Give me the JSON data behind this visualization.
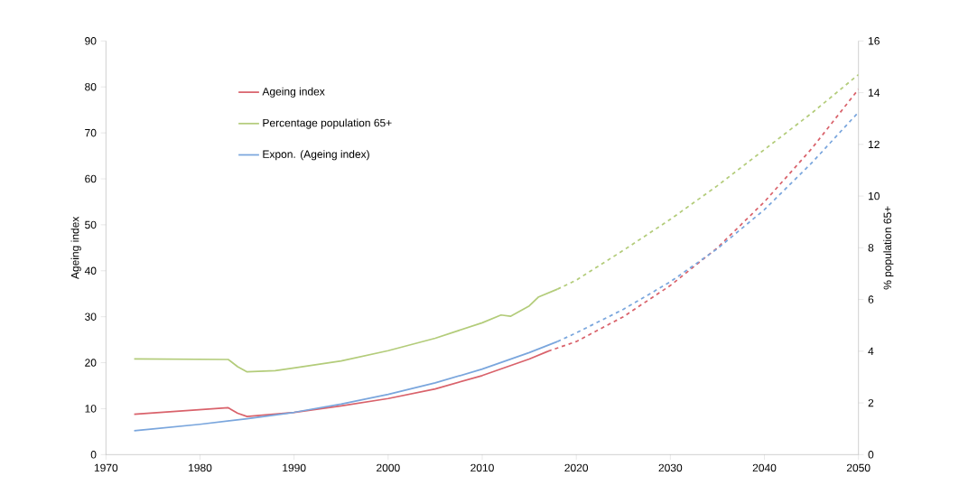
{
  "chart_data": {
    "type": "line",
    "ylabel": "Ageing index",
    "y2label": "% population 65+",
    "xlim": [
      1970,
      2050
    ],
    "xticks": [
      1970,
      1980,
      1990,
      2000,
      2010,
      2020,
      2030,
      2040,
      2050
    ],
    "ylim": [
      0,
      90
    ],
    "yticks": [
      0,
      10,
      20,
      30,
      40,
      50,
      60,
      70,
      80,
      90
    ],
    "y2lim": [
      0,
      16
    ],
    "y2ticks": [
      0,
      2,
      4,
      6,
      8,
      10,
      12,
      14,
      16
    ],
    "legend": "top left",
    "marker": "none",
    "series": [
      {
        "name": "Ageing index",
        "color": "#d9626b",
        "line_style": "solid",
        "x": [
          1973,
          1983,
          1984,
          1985,
          1990,
          1995,
          2000,
          2005,
          2010,
          2015,
          2017
        ],
        "values": [
          8.8,
          10.2,
          9.0,
          8.3,
          9.2,
          10.6,
          12.2,
          14.3,
          17.2,
          20.8,
          22.5
        ]
      },
      {
        "name": "Percentage population 65+",
        "color": "#b3cc7a",
        "axis": "y2",
        "line_style": "solid",
        "x": [
          1973,
          1983,
          1984,
          1985,
          1988,
          1990,
          1995,
          2000,
          2005,
          2010,
          2012,
          2013,
          2015,
          2016,
          2018
        ],
        "values": [
          3.7,
          3.68,
          3.4,
          3.2,
          3.25,
          3.35,
          3.62,
          4.02,
          4.5,
          5.1,
          5.4,
          5.35,
          5.75,
          6.1,
          6.4
        ]
      },
      {
        "name": "Expon. (Ageing index)",
        "color": "#7aa6dd",
        "line_style": "solid",
        "x": [
          1973,
          1975,
          1980,
          1985,
          1990,
          1995,
          2000,
          2005,
          2010,
          2015,
          2018
        ],
        "values": [
          5.2,
          5.6,
          6.6,
          7.8,
          9.2,
          11.0,
          13.1,
          15.6,
          18.6,
          22.2,
          24.6
        ]
      },
      {
        "color": "#d9626b",
        "line_style": "dashed",
        "x": [
          2017,
          2020,
          2025,
          2030,
          2035,
          2040,
          2045,
          2050
        ],
        "values": [
          22.5,
          24.6,
          30.0,
          36.8,
          45.0,
          55.0,
          66.5,
          79.5
        ]
      },
      {
        "color": "#b3cc7a",
        "axis": "y2",
        "line_style": "dashed",
        "x": [
          2018,
          2020,
          2025,
          2030,
          2035,
          2040,
          2045,
          2050
        ],
        "values": [
          6.4,
          6.75,
          7.9,
          9.1,
          10.4,
          11.8,
          13.2,
          14.7
        ]
      },
      {
        "color": "#7aa6dd",
        "line_style": "dashed",
        "x": [
          2018,
          2020,
          2025,
          2030,
          2035,
          2040,
          2045,
          2050
        ],
        "values": [
          24.6,
          26.5,
          31.6,
          37.6,
          44.8,
          53.3,
          63.4,
          74.5
        ]
      }
    ]
  }
}
